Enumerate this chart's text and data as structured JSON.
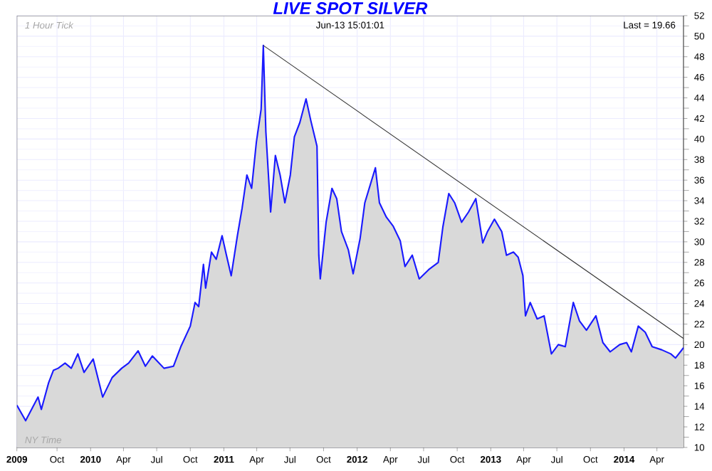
{
  "chart_data": {
    "type": "area",
    "title": "LIVE SPOT SILVER",
    "annotations": [
      "1 Hour Tick",
      "Jun-13 15:01:01",
      "Last = 19.66",
      "NY Time"
    ],
    "xlim": [
      "2009-06-13",
      "2014-06-13"
    ],
    "xticks": [
      {
        "value": "2009-06-13",
        "label": "2009"
      },
      {
        "value": "2009-10-01",
        "label": "Oct"
      },
      {
        "value": "2010-01-01",
        "label": "2010"
      },
      {
        "value": "2010-04-01",
        "label": "Apr"
      },
      {
        "value": "2010-07-01",
        "label": "Jul"
      },
      {
        "value": "2010-10-01",
        "label": "Oct"
      },
      {
        "value": "2011-01-01",
        "label": "2011"
      },
      {
        "value": "2011-04-01",
        "label": "Apr"
      },
      {
        "value": "2011-07-01",
        "label": "Jul"
      },
      {
        "value": "2011-10-01",
        "label": "Oct"
      },
      {
        "value": "2012-01-01",
        "label": "2012"
      },
      {
        "value": "2012-04-01",
        "label": "Apr"
      },
      {
        "value": "2012-07-01",
        "label": "Jul"
      },
      {
        "value": "2012-10-01",
        "label": "Oct"
      },
      {
        "value": "2013-01-01",
        "label": "2013"
      },
      {
        "value": "2013-04-01",
        "label": "Apr"
      },
      {
        "value": "2013-07-01",
        "label": "Jul"
      },
      {
        "value": "2013-10-01",
        "label": "Oct"
      },
      {
        "value": "2014-01-01",
        "label": "2014"
      },
      {
        "value": "2014-04-01",
        "label": "Apr"
      }
    ],
    "ylim": [
      10,
      52
    ],
    "yticks": [
      10,
      12,
      14,
      16,
      18,
      20,
      22,
      24,
      26,
      28,
      30,
      32,
      34,
      36,
      38,
      40,
      42,
      44,
      46,
      48,
      50,
      52
    ],
    "grid": true,
    "series": [
      {
        "color": "#1a1aff",
        "x": [
          "2009-06-13",
          "2009-07-07",
          "2009-08-10",
          "2009-08-19",
          "2009-09-08",
          "2009-09-21",
          "2009-10-04",
          "2009-10-23",
          "2009-11-09",
          "2009-11-27",
          "2009-12-14",
          "2010-01-08",
          "2010-02-03",
          "2010-03-01",
          "2010-03-27",
          "2010-04-15",
          "2010-05-11",
          "2010-05-31",
          "2010-06-19",
          "2010-07-21",
          "2010-08-16",
          "2010-09-05",
          "2010-10-01",
          "2010-10-14",
          "2010-10-24",
          "2010-11-06",
          "2010-11-12",
          "2010-11-28",
          "2010-12-11",
          "2010-12-27",
          "2011-01-06",
          "2011-01-21",
          "2011-02-07",
          "2011-02-20",
          "2011-03-05",
          "2011-03-18",
          "2011-03-31",
          "2011-04-13",
          "2011-04-19",
          "2011-04-26",
          "2011-05-09",
          "2011-05-22",
          "2011-06-04",
          "2011-06-17",
          "2011-07-02",
          "2011-07-13",
          "2011-07-28",
          "2011-08-14",
          "2011-08-27",
          "2011-09-13",
          "2011-09-18",
          "2011-09-22",
          "2011-10-08",
          "2011-10-24",
          "2011-11-06",
          "2011-11-19",
          "2011-12-08",
          "2011-12-21",
          "2012-01-09",
          "2012-01-22",
          "2012-02-20",
          "2012-03-02",
          "2012-03-21",
          "2012-04-09",
          "2012-04-28",
          "2012-05-11",
          "2012-05-31",
          "2012-06-19",
          "2012-07-15",
          "2012-08-10",
          "2012-08-23",
          "2012-09-08",
          "2012-09-24",
          "2012-10-13",
          "2012-11-01",
          "2012-11-21",
          "2012-12-10",
          "2012-12-23",
          "2013-01-11",
          "2013-01-31",
          "2013-02-13",
          "2013-03-04",
          "2013-03-17",
          "2013-03-30",
          "2013-04-06",
          "2013-04-19",
          "2013-05-08",
          "2013-05-27",
          "2013-06-16",
          "2013-07-05",
          "2013-07-24",
          "2013-08-15",
          "2013-09-01",
          "2013-09-20",
          "2013-10-16",
          "2013-11-04",
          "2013-11-24",
          "2013-12-20",
          "2014-01-08",
          "2014-01-21",
          "2014-02-09",
          "2014-02-28",
          "2014-03-19",
          "2014-04-14",
          "2014-05-09",
          "2014-05-22",
          "2014-06-13"
        ],
        "values": [
          14.1,
          12.6,
          14.9,
          13.7,
          16.3,
          17.5,
          17.7,
          18.2,
          17.7,
          19.1,
          17.3,
          18.6,
          14.9,
          16.8,
          17.7,
          18.2,
          19.4,
          17.9,
          18.9,
          17.7,
          17.9,
          19.8,
          21.8,
          24.1,
          23.7,
          27.8,
          25.5,
          29.0,
          28.3,
          30.6,
          29.0,
          26.7,
          30.6,
          33.3,
          36.5,
          35.2,
          39.7,
          42.9,
          49.1,
          40.7,
          32.9,
          38.4,
          36.5,
          33.8,
          36.5,
          40.2,
          41.6,
          43.9,
          41.8,
          39.3,
          28.7,
          26.4,
          31.9,
          35.2,
          34.2,
          31.0,
          29.2,
          26.9,
          30.3,
          33.8,
          37.2,
          33.8,
          32.4,
          31.5,
          30.1,
          27.6,
          28.7,
          26.4,
          27.3,
          28.0,
          31.5,
          34.7,
          33.8,
          31.9,
          32.9,
          34.2,
          29.9,
          31.0,
          32.2,
          31.0,
          28.7,
          29.0,
          28.5,
          26.7,
          22.8,
          24.1,
          22.5,
          22.8,
          19.1,
          20.0,
          19.8,
          24.1,
          22.3,
          21.4,
          22.8,
          20.2,
          19.3,
          20.0,
          20.2,
          19.3,
          21.8,
          21.2,
          19.8,
          19.5,
          19.1,
          18.7,
          19.7
        ]
      },
      {
        "type": "line",
        "color": "#333333",
        "x": [
          "2011-04-19",
          "2014-06-13"
        ],
        "values": [
          49.1,
          20.6
        ]
      }
    ]
  }
}
